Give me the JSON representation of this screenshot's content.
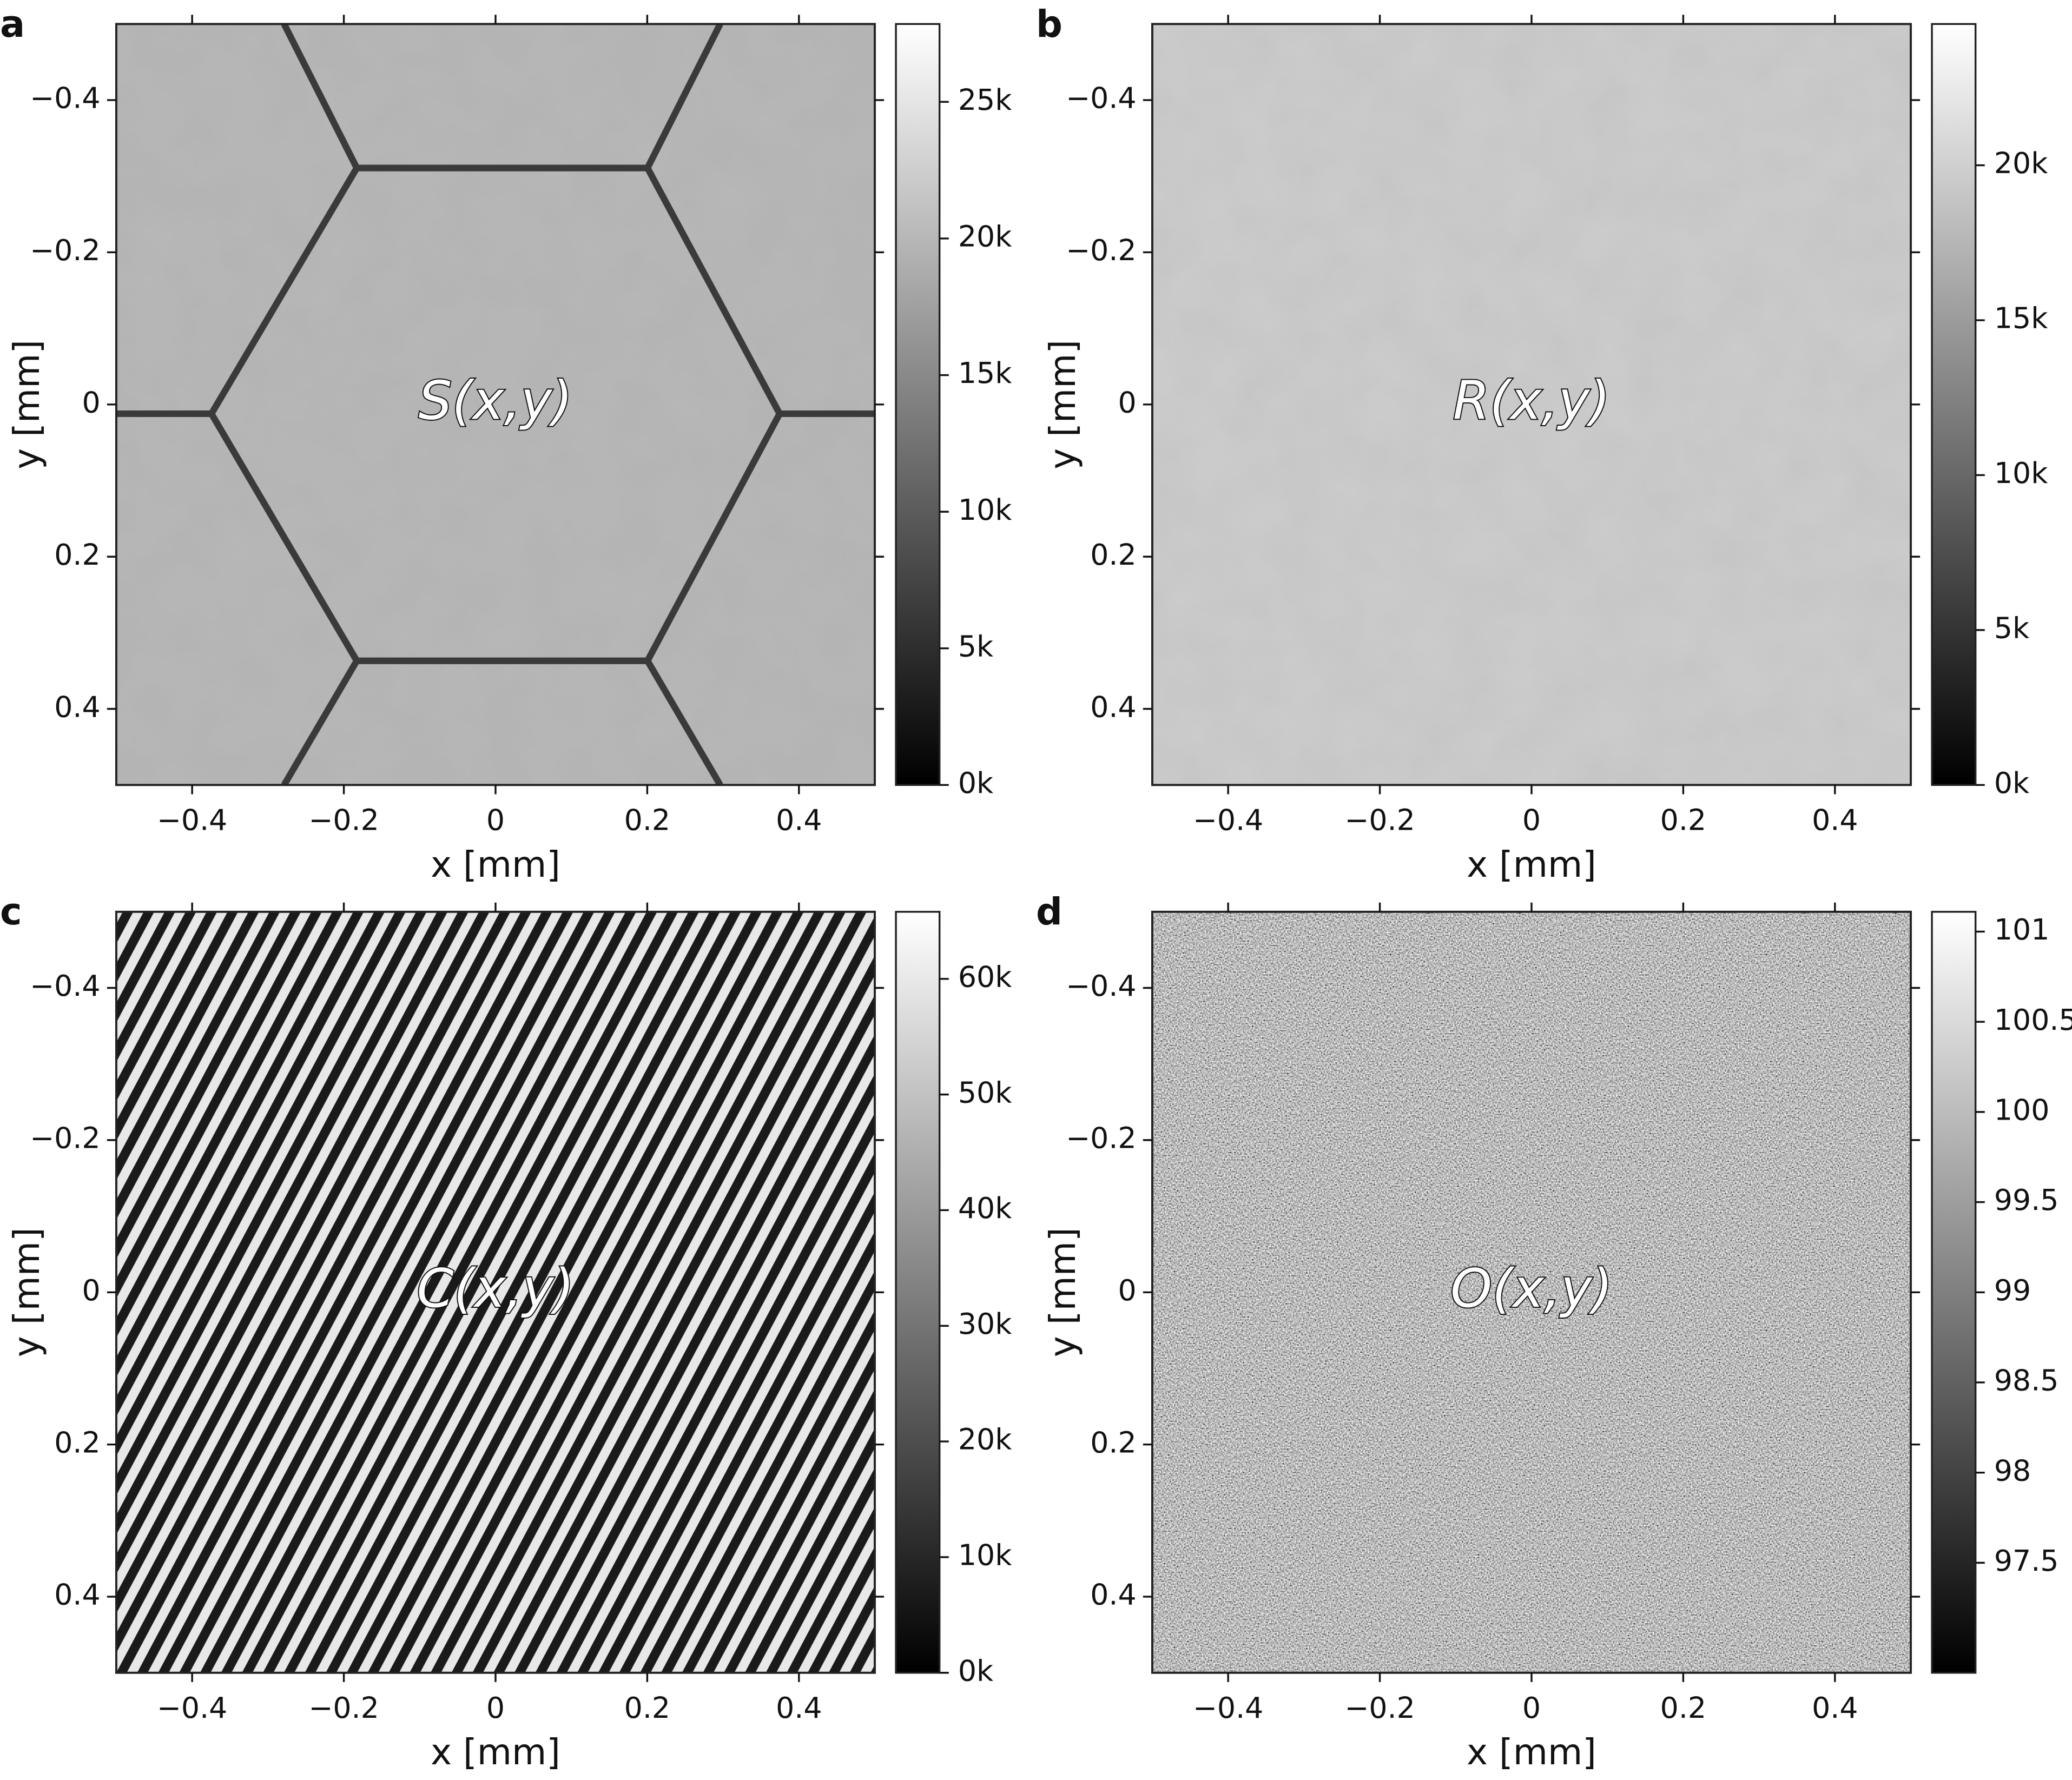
{
  "chart_data": [
    {
      "type": "image",
      "panel_label": "a",
      "annotation": "S(x,y)",
      "xlabel": "x [mm]",
      "ylabel": "y [mm]",
      "xlim": [
        -0.5,
        0.5
      ],
      "ylim": [
        0.5,
        -0.5
      ],
      "xticks": [
        {
          "value": -0.4,
          "label": "−0.4"
        },
        {
          "value": -0.2,
          "label": "−0.2"
        },
        0,
        0.2,
        0.4
      ],
      "yticks": [
        {
          "value": -0.4,
          "label": "−0.4"
        },
        {
          "value": -0.2,
          "label": "−0.2"
        },
        0,
        0.2,
        0.4
      ],
      "colormap": "gray",
      "clim": [
        0,
        27850
      ],
      "cticks": [
        {
          "value": 0,
          "label": "0k"
        },
        {
          "value": 5000,
          "label": "5k"
        },
        {
          "value": 10000,
          "label": "10k"
        },
        {
          "value": 15000,
          "label": "15k"
        },
        {
          "value": 20000,
          "label": "20k"
        },
        {
          "value": 25000,
          "label": "25k"
        }
      ]
    },
    {
      "type": "image",
      "panel_label": "b",
      "annotation": "R(x,y)",
      "xlabel": "x [mm]",
      "ylabel": "y [mm]",
      "xlim": [
        -0.5,
        0.5
      ],
      "ylim": [
        0.5,
        -0.5
      ],
      "xticks": [
        {
          "value": -0.4,
          "label": "−0.4"
        },
        {
          "value": -0.2,
          "label": "−0.2"
        },
        0,
        0.2,
        0.4
      ],
      "yticks": [
        {
          "value": -0.4,
          "label": "−0.4"
        },
        {
          "value": -0.2,
          "label": "−0.2"
        },
        0,
        0.2,
        0.4
      ],
      "colormap": "gray",
      "clim": [
        0,
        24560
      ],
      "cticks": [
        {
          "value": 0,
          "label": "0k"
        },
        {
          "value": 5000,
          "label": "5k"
        },
        {
          "value": 10000,
          "label": "10k"
        },
        {
          "value": 15000,
          "label": "15k"
        },
        {
          "value": 20000,
          "label": "20k"
        }
      ]
    },
    {
      "type": "image",
      "panel_label": "c",
      "annotation": "C(x,y)",
      "xlabel": "x [mm]",
      "ylabel": "y [mm]",
      "xlim": [
        -0.5,
        0.5
      ],
      "ylim": [
        0.5,
        -0.5
      ],
      "xticks": [
        {
          "value": -0.4,
          "label": "−0.4"
        },
        {
          "value": -0.2,
          "label": "−0.2"
        },
        0,
        0.2,
        0.4
      ],
      "yticks": [
        {
          "value": -0.4,
          "label": "−0.4"
        },
        {
          "value": -0.2,
          "label": "−0.2"
        },
        0,
        0.2,
        0.4
      ],
      "colormap": "gray",
      "clim": [
        0,
        65800
      ],
      "cticks": [
        {
          "value": 0,
          "label": "0k"
        },
        {
          "value": 10000,
          "label": "10k"
        },
        {
          "value": 20000,
          "label": "20k"
        },
        {
          "value": 30000,
          "label": "30k"
        },
        {
          "value": 40000,
          "label": "40k"
        },
        {
          "value": 50000,
          "label": "50k"
        },
        {
          "value": 60000,
          "label": "60k"
        }
      ]
    },
    {
      "type": "image",
      "panel_label": "d",
      "annotation": "O(x,y)",
      "xlabel": "x [mm]",
      "ylabel": "y [mm]",
      "xlim": [
        -0.5,
        0.5
      ],
      "ylim": [
        0.5,
        -0.5
      ],
      "xticks": [
        {
          "value": -0.4,
          "label": "−0.4"
        },
        {
          "value": -0.2,
          "label": "−0.2"
        },
        0,
        0.2,
        0.4
      ],
      "yticks": [
        {
          "value": -0.4,
          "label": "−0.4"
        },
        {
          "value": -0.2,
          "label": "−0.2"
        },
        0,
        0.2,
        0.4
      ],
      "colormap": "gray",
      "clim": [
        96.89,
        101.11
      ],
      "cticks": [
        97.5,
        98,
        98.5,
        99,
        99.5,
        100,
        100.5,
        101
      ]
    }
  ]
}
